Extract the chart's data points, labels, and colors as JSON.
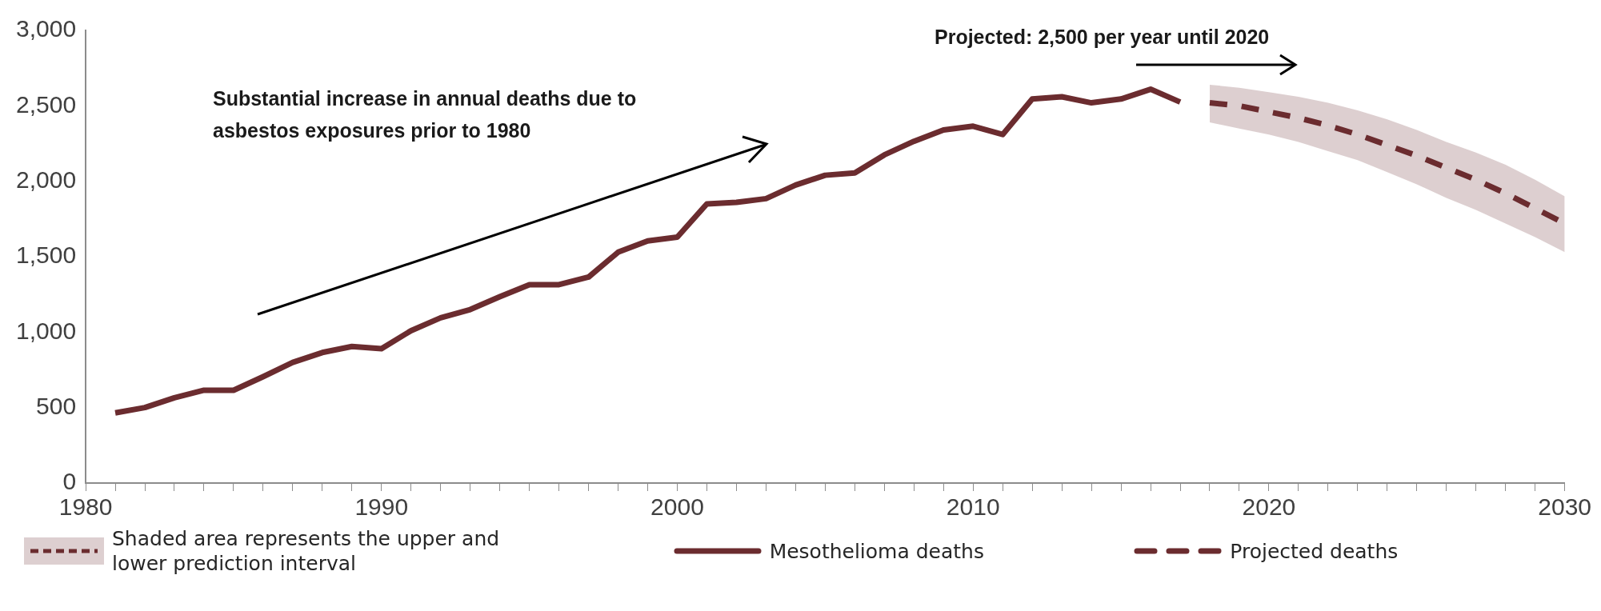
{
  "chart_data": {
    "type": "line",
    "annotations": [
      "Substantial increase in annual deaths due to asbestos exposures prior to 1980",
      "Projected: 2,500 per year until 2020",
      "Shaded area represents the upper and lower prediction interval"
    ],
    "series": [
      {
        "name": "Mesothelioma deaths",
        "type": "line",
        "line_style": "solid",
        "color": "#6b2c2f",
        "x": [
          1981,
          1982,
          1983,
          1984,
          1985,
          1986,
          1987,
          1988,
          1989,
          1990,
          1991,
          1992,
          1993,
          1994,
          1995,
          1996,
          1997,
          1998,
          1999,
          2000,
          2001,
          2002,
          2003,
          2004,
          2005,
          2006,
          2007,
          2008,
          2009,
          2010,
          2011,
          2012,
          2013,
          2014,
          2015,
          2016,
          2017
        ],
        "values": [
          465,
          500,
          565,
          615,
          615,
          705,
          800,
          865,
          905,
          890,
          1010,
          1095,
          1150,
          1235,
          1315,
          1315,
          1365,
          1530,
          1605,
          1630,
          1850,
          1860,
          1885,
          1975,
          2040,
          2055,
          2175,
          2265,
          2340,
          2365,
          2310,
          2545,
          2560,
          2520,
          2545,
          2610,
          2525
        ]
      },
      {
        "name": "Projected deaths",
        "type": "line",
        "line_style": "dashed",
        "color": "#6b2c2f",
        "x": [
          2018,
          2019,
          2020,
          2021,
          2022,
          2023,
          2024,
          2025,
          2026,
          2027,
          2028,
          2029,
          2030
        ],
        "values": [
          2520,
          2500,
          2460,
          2420,
          2370,
          2310,
          2240,
          2170,
          2090,
          2010,
          1920,
          1820,
          1720
        ],
        "lower": [
          2390,
          2350,
          2310,
          2260,
          2200,
          2140,
          2060,
          1980,
          1890,
          1810,
          1720,
          1630,
          1530
        ],
        "upper": [
          2640,
          2620,
          2590,
          2560,
          2520,
          2470,
          2410,
          2340,
          2260,
          2190,
          2110,
          2010,
          1900
        ]
      }
    ],
    "xlim": [
      1980,
      2030
    ],
    "xticks": [
      1980,
      {
        "value": 1981,
        "label": null
      },
      {
        "value": 1982,
        "label": null
      },
      {
        "value": 1983,
        "label": null
      },
      {
        "value": 1984,
        "label": null
      },
      {
        "value": 1985,
        "label": null
      },
      {
        "value": 1986,
        "label": null
      },
      {
        "value": 1987,
        "label": null
      },
      {
        "value": 1988,
        "label": null
      },
      {
        "value": 1989,
        "label": null
      },
      1990,
      {
        "value": 1991,
        "label": null
      },
      {
        "value": 1992,
        "label": null
      },
      {
        "value": 1993,
        "label": null
      },
      {
        "value": 1994,
        "label": null
      },
      {
        "value": 1995,
        "label": null
      },
      {
        "value": 1996,
        "label": null
      },
      {
        "value": 1997,
        "label": null
      },
      {
        "value": 1998,
        "label": null
      },
      {
        "value": 1999,
        "label": null
      },
      2000,
      {
        "value": 2001,
        "label": null
      },
      {
        "value": 2002,
        "label": null
      },
      {
        "value": 2003,
        "label": null
      },
      {
        "value": 2004,
        "label": null
      },
      {
        "value": 2005,
        "label": null
      },
      {
        "value": 2006,
        "label": null
      },
      {
        "value": 2007,
        "label": null
      },
      {
        "value": 2008,
        "label": null
      },
      {
        "value": 2009,
        "label": null
      },
      2010,
      {
        "value": 2011,
        "label": null
      },
      {
        "value": 2012,
        "label": null
      },
      {
        "value": 2013,
        "label": null
      },
      {
        "value": 2014,
        "label": null
      },
      {
        "value": 2015,
        "label": null
      },
      {
        "value": 2016,
        "label": null
      },
      {
        "value": 2017,
        "label": null
      },
      {
        "value": 2018,
        "label": null
      },
      {
        "value": 2019,
        "label": null
      },
      2020,
      {
        "value": 2021,
        "label": null
      },
      {
        "value": 2022,
        "label": null
      },
      {
        "value": 2023,
        "label": null
      },
      {
        "value": 2024,
        "label": null
      },
      {
        "value": 2025,
        "label": null
      },
      {
        "value": 2026,
        "label": null
      },
      {
        "value": 2027,
        "label": null
      },
      {
        "value": 2028,
        "label": null
      },
      {
        "value": 2029,
        "label": null
      },
      2030
    ],
    "ylim": [
      0,
      3000
    ],
    "yticks": [
      {
        "value": 0,
        "label": "0"
      },
      {
        "value": 500,
        "label": "500"
      },
      {
        "value": 1000,
        "label": "1,000"
      },
      {
        "value": 1500,
        "label": "1,500"
      },
      {
        "value": 2000,
        "label": "2,000"
      },
      {
        "value": 2500,
        "label": "2,500"
      },
      {
        "value": 3000,
        "label": "3,000"
      }
    ],
    "grid": false,
    "legend": "bottom",
    "marker": "none"
  }
}
